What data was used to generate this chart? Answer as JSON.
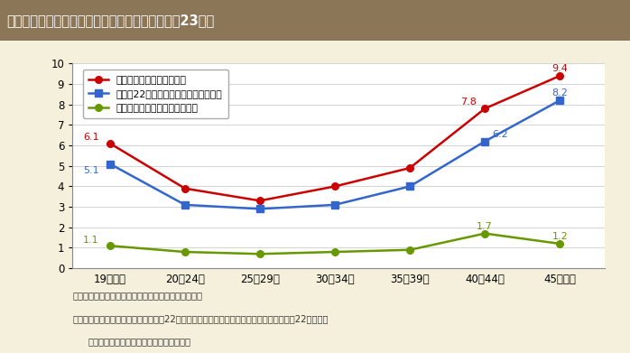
{
  "title": "第１－６－２図　母の年齢別周産期死亡率（平成23年）",
  "title_bg_color": "#8B7657",
  "title_text_color": "#FFFFFF",
  "bg_color": "#F5F0DC",
  "plot_bg_color": "#FFFFFF",
  "categories": [
    "19歳以下",
    "20～24歳",
    "25～29歳",
    "30～34歳",
    "35～39歳",
    "40～44歳",
    "45歳以上"
  ],
  "series": [
    {
      "name": "周産期死亡率（出産千対）",
      "values": [
        6.1,
        3.9,
        3.3,
        4.0,
        4.9,
        7.8,
        9.4
      ],
      "color": "#CC0000",
      "marker": "o"
    },
    {
      "name": "妊娠満22週以後の死産率（出産千対）",
      "values": [
        5.1,
        3.1,
        2.9,
        3.1,
        4.0,
        6.2,
        8.2
      ],
      "color": "#3366CC",
      "marker": "s"
    },
    {
      "name": "早期新生児死亡率（出生千対）",
      "values": [
        1.1,
        0.8,
        0.7,
        0.8,
        0.9,
        1.7,
        1.2
      ],
      "color": "#669900",
      "marker": "o"
    }
  ],
  "ylim": [
    0,
    10
  ],
  "yticks": [
    0,
    1,
    2,
    3,
    4,
    5,
    6,
    7,
    8,
    9,
    10
  ],
  "note_line1": "（備考）１．厚生労働省「人口動態統計」より作成。",
  "note_line2": "　　　　２．周産期死亡率及び妊娠満22週以後の死産率における出産は，出生数に妊娠満22週以後の",
  "note_line3": "　　　　　　死産数を加えたものである。"
}
